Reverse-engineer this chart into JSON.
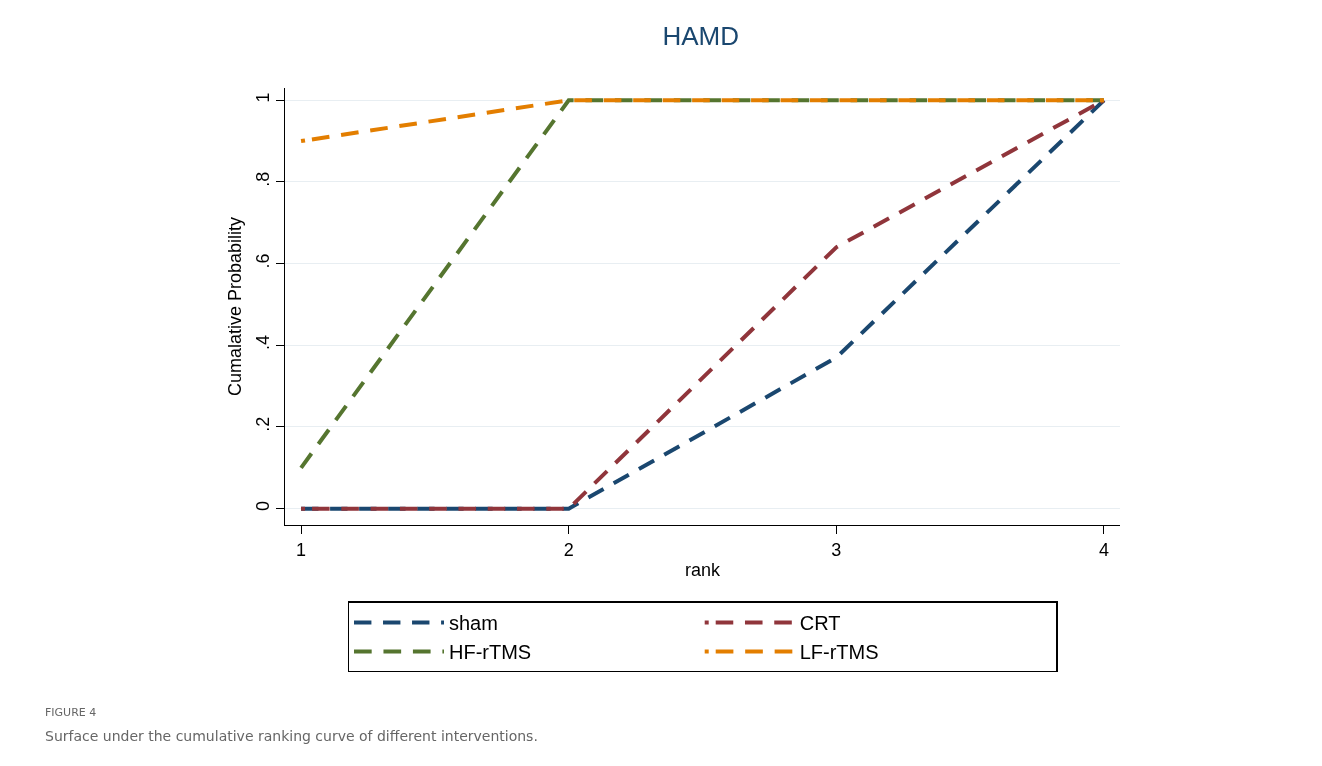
{
  "chart_data": {
    "type": "line",
    "title": "HAMD",
    "xlabel": "rank",
    "ylabel": "Cumalative Probability",
    "x": [
      1,
      2,
      3,
      4
    ],
    "series": [
      {
        "name": "sham",
        "color": "#1a476f",
        "values": [
          0,
          0,
          0.37,
          1
        ]
      },
      {
        "name": "CRT",
        "color": "#90353b",
        "values": [
          0,
          0,
          0.64,
          1
        ]
      },
      {
        "name": "HF-rTMS",
        "color": "#55752f",
        "values": [
          0.1,
          1,
          1,
          1
        ]
      },
      {
        "name": "LF-rTMS",
        "color": "#e37e00",
        "values": [
          0.9,
          1,
          1,
          1
        ]
      }
    ],
    "xlim": [
      0.94,
      4.06
    ],
    "xticks": [
      1,
      2,
      3,
      4
    ],
    "ylim": [
      -0.04,
      1.03
    ],
    "yticks": [
      0,
      {
        "value": 0.2,
        "label": ".2"
      },
      {
        "value": 0.4,
        "label": ".4"
      },
      {
        "value": 0.6,
        "label": ".6"
      },
      {
        "value": 0.8,
        "label": ".8"
      },
      1
    ],
    "grid": "y",
    "legend": "bottom",
    "line_style": "dashed",
    "marker": "none",
    "annotations": [
      "FIGURE 4",
      "Surface under the cumulative ranking curve of different interventions."
    ]
  }
}
